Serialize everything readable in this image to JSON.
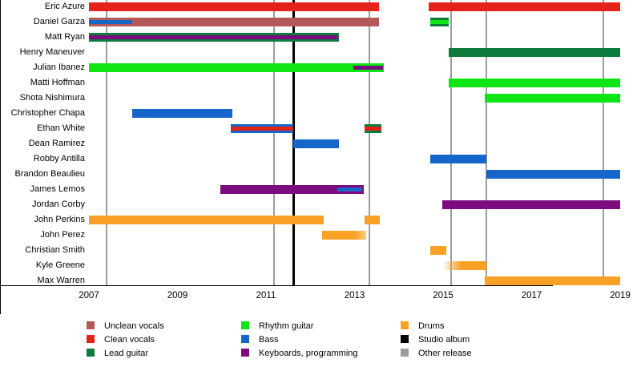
{
  "chart_data": {
    "type": "timeline",
    "description": "Band members timeline chart",
    "x_axis": {
      "start": 2007,
      "end": 2019,
      "tick_years": [
        2007,
        2009,
        2011,
        2013,
        2015,
        2017,
        2019
      ]
    },
    "grid": "vertical release lines",
    "legend_position": "bottom",
    "roles": {
      "unclean_vocals": {
        "label": "Unclean vocals",
        "color": "#b35959"
      },
      "clean_vocals": {
        "label": "Clean vocals",
        "color": "#e32219"
      },
      "lead_guitar": {
        "label": "Lead guitar",
        "color": "#0c7b3c"
      },
      "rhythm_guitar": {
        "label": "Rhythm guitar",
        "color": "#0de514"
      },
      "bass": {
        "label": "Bass",
        "color": "#1467c8"
      },
      "keyboards": {
        "label": "Keyboards, programming",
        "color": "#7d0b80"
      },
      "drums": {
        "label": "Drums",
        "color": "#f9a126"
      },
      "studio_album": {
        "label": "Studio album",
        "color": "#000000"
      },
      "other_release": {
        "label": "Other release",
        "color": "#9c9c9c"
      }
    },
    "members": [
      {
        "name": "Eric Azure",
        "bars": [
          {
            "role": "clean_vocals",
            "from": 2007.0,
            "to": 2013.55
          },
          {
            "role": "clean_vocals",
            "from": 2014.67,
            "to": 2019.0
          }
        ]
      },
      {
        "name": "Daniel Garza",
        "bars": [
          {
            "role": "unclean_vocals",
            "from": 2007.0,
            "to": 2013.55,
            "stripe": {
              "role": "bass",
              "from": 2007.0,
              "to": 2007.98
            }
          },
          {
            "role": "lead_guitar",
            "from": 2014.71,
            "to": 2015.13,
            "stripe": {
              "role": "rhythm_guitar",
              "from": 2014.71,
              "to": 2015.13
            }
          }
        ]
      },
      {
        "name": "Matt Ryan",
        "bars": [
          {
            "role": "lead_guitar",
            "from": 2007.0,
            "to": 2012.65,
            "stripe": {
              "role": "keyboards",
              "from": 2007.0,
              "to": 2012.61
            }
          }
        ]
      },
      {
        "name": "Henry Maneuver",
        "bars": [
          {
            "role": "lead_guitar",
            "from": 2015.13,
            "to": 2019.0
          }
        ]
      },
      {
        "name": "Julian Ibanez",
        "bars": [
          {
            "role": "rhythm_guitar",
            "from": 2007.0,
            "to": 2013.66,
            "stripe": {
              "role": "keyboards",
              "from": 2012.97,
              "to": 2013.64
            }
          }
        ]
      },
      {
        "name": "Matti Hoffman",
        "bars": [
          {
            "role": "rhythm_guitar",
            "from": 2015.13,
            "to": 2019.0
          }
        ]
      },
      {
        "name": "Shota Nishimura",
        "bars": [
          {
            "role": "rhythm_guitar",
            "from": 2015.95,
            "to": 2019.0
          }
        ]
      },
      {
        "name": "Christopher Chapa",
        "bars": [
          {
            "role": "bass",
            "from": 2007.98,
            "to": 2010.24
          }
        ]
      },
      {
        "name": "Ethan White",
        "bars": [
          {
            "role": "bass",
            "from": 2010.2,
            "to": 2011.62,
            "stripe": {
              "role": "clean_vocals",
              "from": 2010.2,
              "to": 2011.62
            }
          },
          {
            "role": "lead_guitar",
            "from": 2013.23,
            "to": 2013.61,
            "stripe": {
              "role": "clean_vocals",
              "from": 2013.23,
              "to": 2013.61
            }
          }
        ]
      },
      {
        "name": "Dean Ramirez",
        "bars": [
          {
            "role": "bass",
            "from": 2011.62,
            "to": 2012.65
          }
        ]
      },
      {
        "name": "Robby Antilla",
        "bars": [
          {
            "role": "bass",
            "from": 2014.71,
            "to": 2015.98
          }
        ]
      },
      {
        "name": "Brandon Beaulieu",
        "bars": [
          {
            "role": "bass",
            "from": 2015.98,
            "to": 2019.0
          }
        ]
      },
      {
        "name": "James Lemos",
        "bars": [
          {
            "role": "keyboards",
            "from": 2009.97,
            "to": 2013.21,
            "stripe": {
              "role": "bass",
              "from": 2012.61,
              "to": 2013.17
            }
          }
        ]
      },
      {
        "name": "Jordan Corby",
        "bars": [
          {
            "role": "keyboards",
            "from": 2014.98,
            "to": 2019.0
          }
        ]
      },
      {
        "name": "John Perkins",
        "bars": [
          {
            "role": "drums",
            "from": 2007.0,
            "to": 2012.3
          },
          {
            "role": "drums",
            "from": 2013.23,
            "to": 2013.57
          }
        ]
      },
      {
        "name": "John Perez",
        "bars": [
          {
            "role": "drums",
            "from": 2012.27,
            "to": 2013.26,
            "fade": "right"
          }
        ]
      },
      {
        "name": "Christian Smith",
        "bars": [
          {
            "role": "drums",
            "from": 2014.71,
            "to": 2015.07
          }
        ]
      },
      {
        "name": "Kyle Greene",
        "bars": [
          {
            "role": "drums",
            "from": 2015.0,
            "to": 2015.98,
            "fade": "left"
          }
        ]
      },
      {
        "name": "Max Warren",
        "bars": [
          {
            "role": "drums",
            "from": 2015.95,
            "to": 2019.0
          }
        ]
      }
    ],
    "releases": [
      {
        "kind": "other_release",
        "year": 2007.4
      },
      {
        "kind": "other_release",
        "year": 2011.18
      },
      {
        "kind": "studio_album",
        "year": 2011.62
      },
      {
        "kind": "other_release",
        "year": 2013.33
      },
      {
        "kind": "other_release",
        "year": 2015.18
      },
      {
        "kind": "other_release",
        "year": 2015.98
      },
      {
        "kind": "other_release",
        "year": 2018.62
      }
    ],
    "legend_columns": [
      [
        "unclean_vocals",
        "clean_vocals",
        "lead_guitar"
      ],
      [
        "rhythm_guitar",
        "bass",
        "keyboards"
      ],
      [
        "drums",
        "studio_album",
        "other_release"
      ]
    ]
  }
}
